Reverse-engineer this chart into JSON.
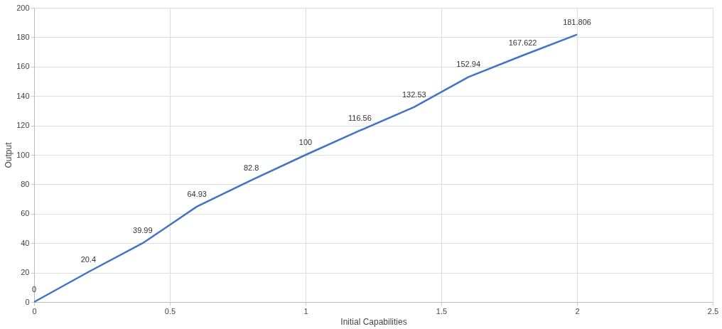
{
  "chart_data": {
    "type": "line",
    "xlabel": "Initial Capabilities",
    "ylabel": "Output",
    "x": [
      0,
      0.2,
      0.4,
      0.6,
      0.8,
      1.0,
      1.2,
      1.4,
      1.6,
      1.8,
      2.0
    ],
    "series": [
      {
        "color": "#4472c4",
        "values": [
          0,
          20.4,
          39.99,
          64.93,
          82.8,
          100,
          116.56,
          132.53,
          152.94,
          167.622,
          181.806
        ]
      }
    ],
    "xlim": [
      0,
      2.5
    ],
    "xticks": [
      0,
      0.5,
      1,
      1.5,
      2,
      2.5
    ],
    "ylim": [
      0,
      200
    ],
    "yticks": [
      0,
      20,
      40,
      60,
      80,
      100,
      120,
      140,
      160,
      180,
      200
    ],
    "grid": true,
    "data_labels": true,
    "marker": "none",
    "line_style": "solid"
  }
}
